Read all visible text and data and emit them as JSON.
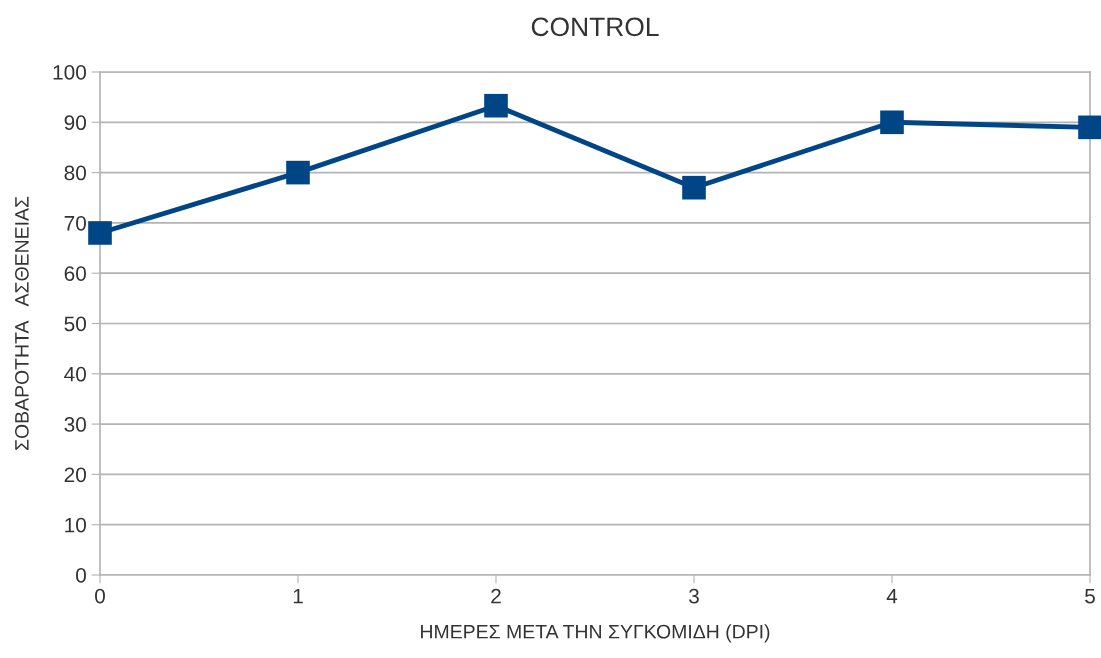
{
  "chart_data": {
    "type": "line",
    "title": "CONTROL",
    "xlabel": "ΗΜΕΡΕΣ ΜΕΤΑ ΤΗΝ ΣΥΓΚΟΜΙΔΗ (DPI)",
    "ylabel": "ΣΟΒΑΡΟΤΗΤΑ   ΑΣΘΕΝΕΙΑΣ",
    "x": [
      0,
      1,
      2,
      3,
      4,
      5
    ],
    "series": [
      {
        "color": "#004586",
        "values": [
          68,
          80,
          93.3,
          77,
          90,
          89
        ]
      }
    ],
    "xlim": [
      0,
      5
    ],
    "xticks": [
      0,
      1,
      2,
      3,
      4,
      5
    ],
    "ylim": [
      0,
      100
    ],
    "yticks": [
      0,
      10,
      20,
      30,
      40,
      50,
      60,
      70,
      80,
      90,
      100
    ],
    "grid": "y",
    "marker": "square",
    "line_style": "solid"
  }
}
